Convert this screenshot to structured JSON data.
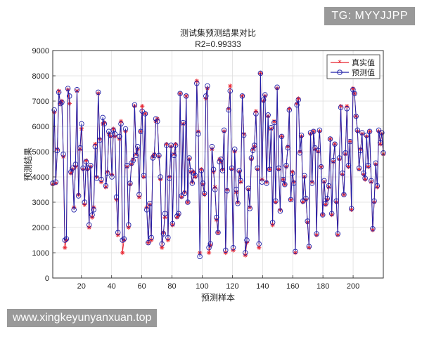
{
  "watermarks": {
    "top_right": "TG: MYYJJPP",
    "bottom_left": "www.xingkeyunyanxuan.top"
  },
  "colors": {
    "true_series": "#e8202c",
    "pred_series": "#1f1fa8",
    "grid": "#dedede",
    "axis": "#333333"
  },
  "chart_data": {
    "type": "line",
    "title": "测试集预测结果对比",
    "subtitle": "R2=0.99333",
    "xlabel": "预测样本",
    "ylabel": "预测结果",
    "xlim": [
      1,
      220
    ],
    "ylim": [
      0,
      9000
    ],
    "xticks": [
      20,
      40,
      60,
      80,
      100,
      120,
      140,
      160,
      180,
      200
    ],
    "yticks": [
      0,
      1000,
      2000,
      3000,
      4000,
      5000,
      6000,
      7000,
      8000,
      9000
    ],
    "grid": true,
    "legend_position": "top-right",
    "series": [
      {
        "name": "真实值",
        "marker": "star",
        "values": [
          3710,
          6550,
          3750,
          5100,
          7400,
          6900,
          7000,
          4800,
          1200,
          1500,
          7450,
          6900,
          4150,
          4300,
          2800,
          4400,
          7400,
          3300,
          5100,
          5900,
          4300,
          2900,
          4650,
          4300,
          2000,
          4400,
          2400,
          2800,
          5300,
          4000,
          7300,
          5500,
          3800,
          6100,
          6150,
          3600,
          4200,
          5700,
          5600,
          4100,
          5900,
          5600,
          3100,
          1700,
          5500,
          6200,
          1000,
          1500,
          5800,
          4400,
          2000,
          3700,
          4500,
          4700,
          6800,
          4900,
          5100,
          3200,
          5800,
          6800,
          4000,
          6500,
          2800,
          1400,
          2900,
          1500,
          4800,
          4900,
          6200,
          6300,
          4800,
          3900,
          1200,
          1800,
          2400,
          5300,
          1500,
          4000,
          5200,
          2100,
          4900,
          5300,
          2400,
          2500,
          7300,
          3200,
          6100,
          3400,
          7200,
          3000,
          4700,
          4200,
          3800,
          4200,
          4000,
          7800,
          5800,
          1000,
          4300,
          3700,
          3300,
          7100,
          7500,
          1000,
          1300,
          5100,
          4200,
          3600,
          2300,
          1800,
          4700,
          4600,
          4300,
          5800,
          1000,
          3500,
          6700,
          7600,
          4300,
          1100,
          5000,
          3400,
          3000,
          4200,
          3800,
          7200,
          5700,
          900,
          1400,
          3500,
          2800,
          4700,
          5100,
          5200,
          6600,
          4300,
          1200,
          8100,
          3900,
          7000,
          7200,
          3800,
          6400,
          4300,
          5900,
          2100,
          6200,
          3000,
          7500,
          4300,
          2700,
          5600,
          3900,
          3700,
          4400,
          5200,
          6700,
          3100,
          4200,
          3800,
          1000,
          6900,
          7100,
          5000,
          5600,
          3000,
          4000,
          3100,
          2200,
          1200,
          5700,
          3800,
          5800,
          5100,
          1700,
          5000,
          5800,
          4400,
          2500,
          3800,
          2900,
          3100,
          3600,
          5500,
          2500,
          4600,
          5300,
          3000,
          1700,
          4700,
          6800,
          4100,
          3300,
          4900,
          6800,
          4400,
          5400,
          2700,
          7500,
          7300,
          6400,
          5800,
          4300,
          5100,
          5700,
          4100,
          3900,
          5600,
          4400,
          5800,
          3800,
          1900,
          3000,
          4500,
          3600,
          5800,
          5300,
          5700,
          4900
        ],
        "note": "values estimated from image"
      },
      {
        "name": "预测值",
        "marker": "circle",
        "values": [
          3750,
          6650,
          3800,
          5050,
          7350,
          6900,
          6950,
          4900,
          1500,
          1550,
          7500,
          7200,
          4200,
          4350,
          2700,
          4500,
          7450,
          3250,
          5150,
          6100,
          4350,
          3000,
          4600,
          4350,
          2100,
          4450,
          2500,
          2700,
          5200,
          3950,
          7350,
          5450,
          3900,
          6350,
          6100,
          3650,
          4150,
          5800,
          5650,
          4000,
          5850,
          5700,
          3200,
          1800,
          5600,
          6100,
          1500,
          1550,
          5900,
          4450,
          2100,
          3750,
          4550,
          4650,
          6850,
          4850,
          5200,
          3300,
          5800,
          6600,
          4050,
          6500,
          2700,
          1400,
          2950,
          1600,
          4750,
          4850,
          6300,
          6200,
          4850,
          4000,
          1350,
          1750,
          2550,
          5250,
          1600,
          3950,
          5250,
          2150,
          4850,
          5250,
          2450,
          2550,
          7300,
          3250,
          6150,
          3350,
          7200,
          3000,
          4750,
          4250,
          3750,
          4150,
          4050,
          7700,
          5700,
          850,
          4250,
          3750,
          3350,
          7200,
          7600,
          1200,
          1350,
          5200,
          4300,
          3500,
          2400,
          1800,
          4600,
          4700,
          4250,
          5850,
          1100,
          3450,
          6650,
          7400,
          4350,
          1200,
          5100,
          3500,
          2950,
          4250,
          3850,
          7200,
          5650,
          1000,
          1500,
          3550,
          2750,
          4750,
          5050,
          5250,
          6500,
          4350,
          1350,
          8100,
          3800,
          7050,
          7250,
          3750,
          6450,
          4300,
          5950,
          2200,
          6150,
          3050,
          7550,
          4350,
          2650,
          5600,
          3900,
          3700,
          4450,
          5150,
          6650,
          3100,
          4150,
          3750,
          1050,
          6850,
          7050,
          4950,
          5650,
          3050,
          4050,
          3150,
          2250,
          1250,
          5750,
          3750,
          5800,
          5150,
          1750,
          5050,
          5850,
          4400,
          2500,
          3850,
          2950,
          3150,
          3650,
          5500,
          2550,
          4650,
          5300,
          3050,
          1750,
          4750,
          6750,
          4150,
          3300,
          4950,
          6700,
          4450,
          5400,
          2750,
          7450,
          7300,
          6400,
          5850,
          4350,
          5050,
          5750,
          4150,
          3950,
          5650,
          4450,
          5800,
          3850,
          1950,
          3050,
          4550,
          3650,
          5850,
          5350,
          5750,
          4950
        ],
        "note": "values estimated from image"
      }
    ]
  }
}
